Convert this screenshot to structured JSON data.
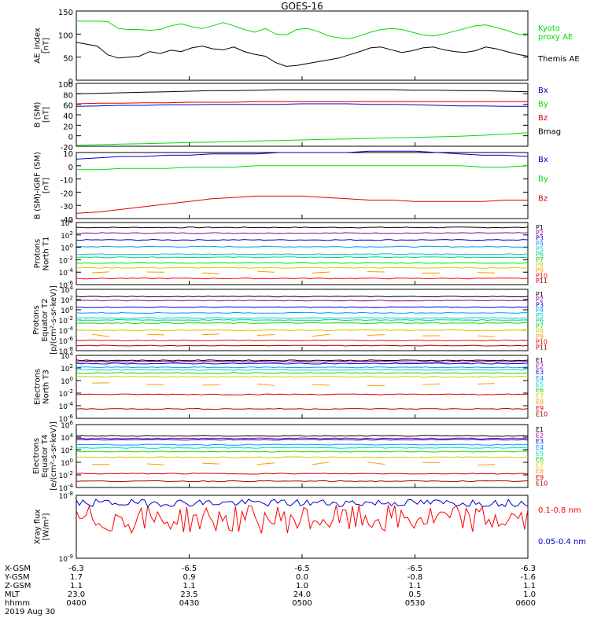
{
  "chart_data": {
    "type": "line",
    "title": "GOES-16",
    "date": "2019 Aug 30",
    "panels": [
      {
        "id": "ae",
        "ylabel": [
          "AE_index",
          "[nT]"
        ],
        "scale": "linear",
        "ylim": [
          0,
          150
        ],
        "ticks": [
          "0",
          "50",
          "100",
          "150"
        ],
        "series": [
          {
            "name": "Kyoto proxy AE",
            "label_lines": [
              "Kyoto",
              "proxy AE"
            ],
            "color": "#00dd00",
            "values": [
              128,
              128,
              128,
              127,
              112,
              110,
              110,
              108,
              110,
              118,
              122,
              116,
              112,
              118,
              125,
              118,
              110,
              104,
              112,
              100,
              98,
              110,
              112,
              106,
              96,
              92,
              90,
              96,
              104,
              110,
              112,
              110,
              104,
              98,
              96,
              100,
              106,
              112,
              118,
              120,
              114,
              108,
              100,
              96
            ]
          },
          {
            "name": "Themis AE",
            "label_lines": [
              "Themis AE"
            ],
            "color": "#000000",
            "values": [
              82,
              78,
              74,
              55,
              48,
              50,
              52,
              62,
              58,
              65,
              62,
              70,
              74,
              68,
              66,
              72,
              62,
              56,
              52,
              38,
              30,
              32,
              36,
              40,
              44,
              48,
              55,
              62,
              70,
              72,
              66,
              60,
              64,
              70,
              72,
              66,
              62,
              60,
              64,
              72,
              68,
              62,
              56,
              52
            ]
          }
        ]
      },
      {
        "id": "bsm",
        "ylabel": [
          "B (SM)",
          "[nT]"
        ],
        "scale": "linear",
        "ylim": [
          -20,
          100
        ],
        "ticks": [
          "-20",
          "0",
          "20",
          "40",
          "60",
          "80",
          "100"
        ],
        "series": [
          {
            "name": "Bx",
            "label_lines": [
              "Bx"
            ],
            "color": "#0000cc",
            "values": [
              56,
              57,
              58,
              58,
              59,
              59,
              60,
              60,
              60,
              60,
              61,
              61,
              61,
              60,
              60,
              59,
              58,
              57,
              57,
              56,
              56
            ]
          },
          {
            "name": "By",
            "label_lines": [
              "By"
            ],
            "color": "#00dd00",
            "values": [
              -18,
              -17,
              -16,
              -15,
              -14,
              -13,
              -12,
              -11,
              -10,
              -9,
              -8,
              -7,
              -6,
              -5,
              -4,
              -3,
              -2,
              -1,
              1,
              3,
              6
            ]
          },
          {
            "name": "Bz",
            "label_lines": [
              "Bz"
            ],
            "color": "#dd0000",
            "values": [
              61,
              62,
              62,
              63,
              63,
              64,
              64,
              64,
              65,
              65,
              65,
              65,
              65,
              65,
              65,
              65,
              65,
              65,
              65,
              65,
              65
            ]
          },
          {
            "name": "Bmag",
            "label_lines": [
              "Bmag"
            ],
            "color": "#000000",
            "values": [
              80,
              81,
              82,
              83,
              84,
              85,
              86,
              86,
              87,
              88,
              88,
              88,
              88,
              88,
              88,
              87,
              87,
              86,
              86,
              85,
              84
            ]
          }
        ]
      },
      {
        "id": "bigrf",
        "ylabel": [
          "B (SM)-IGRF (SM)",
          "[nT]"
        ],
        "scale": "linear",
        "ylim": [
          -40,
          10
        ],
        "ticks": [
          "-40",
          "-30",
          "-20",
          "-10",
          "0",
          "10"
        ],
        "series": [
          {
            "name": "Bx",
            "label_lines": [
              "Bx"
            ],
            "color": "#0000cc",
            "values": [
              5,
              6,
              7,
              7,
              8,
              8,
              9,
              9,
              9,
              10,
              10,
              10,
              10,
              11,
              11,
              11,
              10,
              9,
              8,
              8,
              7
            ]
          },
          {
            "name": "By",
            "label_lines": [
              "By"
            ],
            "color": "#00dd00",
            "values": [
              -3,
              -3,
              -2,
              -2,
              -2,
              -1,
              -1,
              -1,
              0,
              0,
              0,
              0,
              0,
              0,
              0,
              0,
              0,
              0,
              -1,
              -1,
              0
            ]
          },
          {
            "name": "Bz",
            "label_lines": [
              "Bz"
            ],
            "color": "#dd0000",
            "values": [
              -36,
              -35,
              -33,
              -31,
              -29,
              -27,
              -25,
              -24,
              -23,
              -23,
              -23,
              -24,
              -25,
              -26,
              -26,
              -27,
              -27,
              -27,
              -27,
              -26,
              -26
            ]
          }
        ]
      },
      {
        "id": "p_north",
        "ylabel": [
          "Protons",
          "North T1"
        ],
        "scale": "log",
        "ylim": [
          -6,
          4
        ],
        "ticks": [
          "10^-6",
          "10^-4",
          "10^-2",
          "10^0",
          "10^2",
          "10^4"
        ],
        "channels": [
          {
            "name": "P1",
            "color": "#000000",
            "log_level": 3.2
          },
          {
            "name": "P2",
            "color": "#990099",
            "log_level": 2.3
          },
          {
            "name": "P3",
            "color": "#0000cc",
            "log_level": 1.2
          },
          {
            "name": "P4",
            "color": "#0099ff",
            "log_level": 0.1
          },
          {
            "name": "P5",
            "color": "#00cccc",
            "log_level": -1.1
          },
          {
            "name": "P6",
            "color": "#00cc88",
            "log_level": -1.6
          },
          {
            "name": "P7",
            "color": "#00dd00",
            "log_level": -2.5
          },
          {
            "name": "P8",
            "color": "#cccc00",
            "log_level": -3.3
          },
          {
            "name": "P9",
            "color": "#ff9900",
            "log_level": -4
          },
          {
            "name": "P10",
            "color": "#ff0000",
            "log_level": -5
          },
          {
            "name": "P11",
            "color": "#aa0000",
            "log_level": -6
          }
        ]
      },
      {
        "id": "p_eq",
        "ylabel": [
          "Protons",
          "Equator T2",
          "[p/(cm²-s-sr-keV)]"
        ],
        "scale": "log",
        "ylim": [
          -8,
          4
        ],
        "ticks": [
          "10^-8",
          "10^-6",
          "10^-4",
          "10^-2",
          "10^0",
          "10^2",
          "10^4"
        ],
        "channels": [
          {
            "name": "P1",
            "color": "#000000",
            "log_level": 2.6
          },
          {
            "name": "P2",
            "color": "#990099",
            "log_level": 1.8
          },
          {
            "name": "P3",
            "color": "#0000cc",
            "log_level": 0.5
          },
          {
            "name": "P4",
            "color": "#0099ff",
            "log_level": -0.6
          },
          {
            "name": "P5",
            "color": "#00cccc",
            "log_level": -1.6
          },
          {
            "name": "P6",
            "color": "#00cc88",
            "log_level": -2
          },
          {
            "name": "P7",
            "color": "#00dd00",
            "log_level": -2.6
          },
          {
            "name": "P8",
            "color": "#cccc00",
            "log_level": -4
          },
          {
            "name": "P9",
            "color": "#ff9900",
            "log_level": -5
          },
          {
            "name": "P10",
            "color": "#ff0000",
            "log_level": -6
          },
          {
            "name": "P11",
            "color": "#aa0000",
            "log_level": -7
          }
        ]
      },
      {
        "id": "e_north",
        "ylabel": [
          "Electrons",
          "North T3"
        ],
        "scale": "log",
        "ylim": [
          -6,
          4
        ],
        "ticks": [
          "10^-6",
          "10^-4",
          "10^-2",
          "10^0",
          "10^2",
          "10^4"
        ],
        "channels": [
          {
            "name": "E1",
            "color": "#000000",
            "log_level": 3.2
          },
          {
            "name": "E2",
            "color": "#990099",
            "log_level": 3
          },
          {
            "name": "E3",
            "color": "#0000cc",
            "log_level": 2.7
          },
          {
            "name": "E4",
            "color": "#0099ff",
            "log_level": 2.1
          },
          {
            "name": "E5",
            "color": "#00cccc",
            "log_level": 1.7
          },
          {
            "name": "E6",
            "color": "#00dd00",
            "log_level": 1.2
          },
          {
            "name": "E7",
            "color": "#cccc00",
            "log_level": 0.6
          },
          {
            "name": "E8",
            "color": "#ff9900",
            "log_level": -0.6
          },
          {
            "name": "E9",
            "color": "#dd0000",
            "log_level": -2.2
          },
          {
            "name": "E10",
            "color": "#aa0000",
            "log_level": -4.5
          }
        ]
      },
      {
        "id": "e_eq",
        "ylabel": [
          "Electrons",
          "Equator T4",
          "[e/(cm²-s-sr-keV)]"
        ],
        "scale": "log",
        "ylim": [
          -4,
          6
        ],
        "ticks": [
          "10^-4",
          "10^-2",
          "10^0",
          "10^2",
          "10^4",
          "10^6"
        ],
        "channels": [
          {
            "name": "E1",
            "color": "#000000",
            "log_level": 4.2
          },
          {
            "name": "E2",
            "color": "#990099",
            "log_level": 3.8
          },
          {
            "name": "E3",
            "color": "#0000cc",
            "log_level": 3.6
          },
          {
            "name": "E4",
            "color": "#0099ff",
            "log_level": 2.8
          },
          {
            "name": "E5",
            "color": "#00cccc",
            "log_level": 2.3
          },
          {
            "name": "E6",
            "color": "#00dd00",
            "log_level": 1.7
          },
          {
            "name": "E7",
            "color": "#cccc00",
            "log_level": 0.8
          },
          {
            "name": "E8",
            "color": "#ff9900",
            "log_level": -0.2
          },
          {
            "name": "E9",
            "color": "#dd0000",
            "log_level": -1.8
          },
          {
            "name": "E10",
            "color": "#aa0000",
            "log_level": -3
          }
        ]
      },
      {
        "id": "xray",
        "ylabel": [
          "Xray flux",
          "[W/m²]"
        ],
        "scale": "log",
        "ylim": [
          -9,
          -8
        ],
        "ticks": [
          "10^-9",
          "10^-8"
        ],
        "series": [
          {
            "name": "0.1-0.8 nm",
            "label_lines": [
              "0.1-0.8 nm"
            ],
            "color": "#ff0000",
            "log_level": -8.38
          },
          {
            "name": "0.05-0.4 nm",
            "label_lines": [
              "0.05-0.4 nm"
            ],
            "color": "#0000cc",
            "log_level": -8.12
          }
        ]
      }
    ],
    "x_axis": {
      "row_labels": [
        "X-GSM",
        "Y-GSM",
        "Z-GSM",
        "MLT",
        "hhmm"
      ],
      "columns": [
        {
          "values": [
            "-6.3",
            "1.7",
            "1.1",
            "23.0",
            "0400"
          ]
        },
        {
          "values": [
            "-6.5",
            "0.9",
            "1.1",
            "23.5",
            "0430"
          ]
        },
        {
          "values": [
            "-6.5",
            "0.0",
            "1.0",
            "24.0",
            "0500"
          ]
        },
        {
          "values": [
            "-6.5",
            "-0.8",
            "1.1",
            "0.5",
            "0530"
          ]
        },
        {
          "values": [
            "-6.3",
            "-1.6",
            "1.1",
            "1.0",
            "0600"
          ]
        }
      ]
    }
  }
}
